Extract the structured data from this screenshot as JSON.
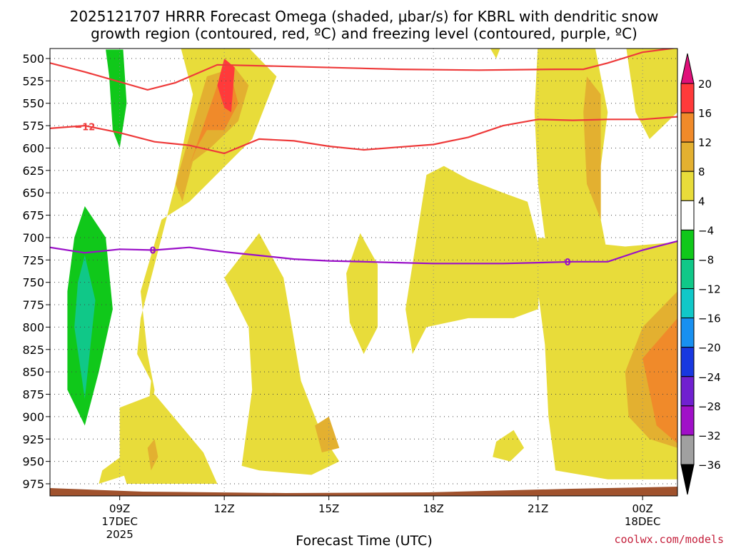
{
  "chart_data": {
    "type": "heatmap",
    "title_line1": "2025121707 HRRR Forecast Omega (shaded, μbar/s) for KBRL with dendritic snow",
    "title_line2": "growth region (contoured, red, ºC) and freezing level (contoured, purple, ºC)",
    "xlabel": "Forecast Time (UTC)",
    "credit": "coolwx.com/models",
    "x_range_hours": [
      7,
      25
    ],
    "y_range_mb": [
      500,
      990
    ],
    "y_ticks": [
      500,
      525,
      550,
      575,
      600,
      625,
      650,
      675,
      700,
      725,
      750,
      775,
      800,
      825,
      850,
      875,
      900,
      925,
      950,
      975
    ],
    "x_ticks": [
      {
        "hour": 9,
        "label": "09Z",
        "sub1": "17DEC",
        "sub2": "2025"
      },
      {
        "hour": 12,
        "label": "12Z",
        "sub1": "",
        "sub2": ""
      },
      {
        "hour": 15,
        "label": "15Z",
        "sub1": "",
        "sub2": ""
      },
      {
        "hour": 18,
        "label": "18Z",
        "sub1": "",
        "sub2": ""
      },
      {
        "hour": 21,
        "label": "21Z",
        "sub1": "",
        "sub2": ""
      },
      {
        "hour": 24,
        "label": "00Z",
        "sub1": "18DEC",
        "sub2": ""
      }
    ],
    "colorbar": {
      "labels": [
        "20",
        "16",
        "12",
        "8",
        "4",
        "−4",
        "−8",
        "−12",
        "−16",
        "−20",
        "−24",
        "−28",
        "−32",
        "−36"
      ],
      "bins": [
        {
          "color": "#ff3a3a"
        },
        {
          "color": "#f08a2a"
        },
        {
          "color": "#e3b030"
        },
        {
          "color": "#e8dc3a"
        },
        {
          "color": "#ffffff"
        },
        {
          "color": "#10c81a"
        },
        {
          "color": "#10c888"
        },
        {
          "color": "#10c8c8"
        },
        {
          "color": "#1890f0"
        },
        {
          "color": "#1838e0"
        },
        {
          "color": "#7020d0"
        },
        {
          "color": "#a010c8"
        },
        {
          "color": "#a0a0a0"
        }
      ],
      "top_color": "#e0107a",
      "bottom_color": "#000000"
    },
    "contours": [
      {
        "name": "dgz-top",
        "label": "",
        "color": "#ee3a3a",
        "points": [
          [
            7,
            505
          ],
          [
            8,
            515
          ],
          [
            9.8,
            535
          ],
          [
            10.6,
            527
          ],
          [
            11.8,
            507
          ],
          [
            14,
            509
          ],
          [
            17,
            512
          ],
          [
            19.3,
            513
          ],
          [
            21.5,
            512
          ],
          [
            22.3,
            512
          ],
          [
            23,
            505
          ],
          [
            24,
            493
          ],
          [
            25,
            488
          ]
        ]
      },
      {
        "name": "dgz-bottom",
        "label": "−12",
        "color": "#ee3a3a",
        "points": [
          [
            7,
            578
          ],
          [
            8,
            575
          ],
          [
            9,
            583
          ],
          [
            10,
            593
          ],
          [
            11,
            597
          ],
          [
            12,
            606
          ],
          [
            13,
            590
          ],
          [
            14,
            592
          ],
          [
            15,
            598
          ],
          [
            16,
            602
          ],
          [
            17,
            599
          ],
          [
            18,
            596
          ],
          [
            19,
            588
          ],
          [
            20,
            575
          ],
          [
            21,
            568
          ],
          [
            22,
            569
          ],
          [
            23,
            568
          ],
          [
            24,
            568
          ],
          [
            25,
            565
          ]
        ]
      },
      {
        "name": "freezing-level",
        "label": "0",
        "color": "#9a10c8",
        "points": [
          [
            7,
            711
          ],
          [
            8,
            717
          ],
          [
            9,
            713
          ],
          [
            10,
            714
          ],
          [
            11,
            711
          ],
          [
            12,
            716
          ],
          [
            13,
            720
          ],
          [
            14,
            724
          ],
          [
            15,
            726
          ],
          [
            16,
            727
          ],
          [
            17,
            728
          ],
          [
            18,
            729
          ],
          [
            19,
            729
          ],
          [
            20,
            729
          ],
          [
            21,
            728
          ],
          [
            22,
            727
          ],
          [
            23,
            727
          ],
          [
            24,
            714
          ],
          [
            25,
            704
          ]
        ]
      }
    ],
    "contour_labels": [
      {
        "text": "−12",
        "x": 8.0,
        "y": 576,
        "color": "#ee3a3a"
      },
      {
        "text": "0",
        "x": 9.95,
        "y": 714,
        "color": "#9a10c8"
      },
      {
        "text": "0",
        "x": 21.85,
        "y": 727,
        "color": "#9a10c8"
      }
    ],
    "regions": [
      {
        "level": "4-8",
        "color": "#e8dc3a",
        "points": [
          [
            10.7,
            480
          ],
          [
            12.5,
            480
          ],
          [
            13.5,
            520
          ],
          [
            12.8,
            590
          ],
          [
            11.9,
            625
          ],
          [
            11.0,
            660
          ],
          [
            10.2,
            680
          ],
          [
            9.6,
            760
          ],
          [
            9.8,
            830
          ],
          [
            10.0,
            870
          ],
          [
            9.8,
            920
          ],
          [
            9.6,
            960
          ],
          [
            8.4,
            975
          ],
          [
            8.5,
            960
          ],
          [
            9.2,
            940
          ],
          [
            9.8,
            900
          ],
          [
            9.9,
            860
          ],
          [
            9.5,
            830
          ],
          [
            9.6,
            790
          ],
          [
            10.2,
            700
          ],
          [
            10.6,
            640
          ],
          [
            10.9,
            580
          ],
          [
            11.1,
            540
          ]
        ]
      },
      {
        "level": "4-8",
        "color": "#e8dc3a",
        "points": [
          [
            9.0,
            890
          ],
          [
            10.0,
            875
          ],
          [
            11.4,
            940
          ],
          [
            11.8,
            975
          ],
          [
            10.4,
            975
          ],
          [
            9.2,
            975
          ],
          [
            9.0,
            950
          ]
        ]
      },
      {
        "level": "4-8",
        "color": "#e8dc3a",
        "points": [
          [
            12.0,
            745
          ],
          [
            13.0,
            695
          ],
          [
            13.7,
            745
          ],
          [
            14.2,
            860
          ],
          [
            14.8,
            920
          ],
          [
            15.3,
            950
          ],
          [
            14.5,
            965
          ],
          [
            13.0,
            960
          ],
          [
            12.5,
            955
          ],
          [
            12.8,
            870
          ],
          [
            12.7,
            800
          ]
        ]
      },
      {
        "level": "4-8",
        "color": "#e8dc3a",
        "points": [
          [
            15.5,
            740
          ],
          [
            15.9,
            695
          ],
          [
            16.4,
            730
          ],
          [
            16.4,
            800
          ],
          [
            16.0,
            830
          ],
          [
            15.6,
            795
          ]
        ]
      },
      {
        "level": "4-8",
        "color": "#e8dc3a",
        "points": [
          [
            17.2,
            780
          ],
          [
            17.8,
            630
          ],
          [
            18.3,
            620
          ],
          [
            19.0,
            635
          ],
          [
            20.0,
            650
          ],
          [
            20.7,
            660
          ],
          [
            21.1,
            720
          ],
          [
            21.0,
            780
          ],
          [
            20.3,
            790
          ],
          [
            19.0,
            790
          ],
          [
            17.8,
            800
          ],
          [
            17.4,
            830
          ]
        ]
      },
      {
        "level": "4-8",
        "color": "#e8dc3a",
        "points": [
          [
            21.0,
            480
          ],
          [
            22.6,
            480
          ],
          [
            23.0,
            560
          ],
          [
            22.8,
            620
          ],
          [
            22.8,
            680
          ],
          [
            23.0,
            720
          ],
          [
            21.7,
            730
          ],
          [
            21.2,
            700
          ],
          [
            21.0,
            640
          ],
          [
            20.9,
            560
          ]
        ]
      },
      {
        "level": "4-8",
        "color": "#e8dc3a",
        "points": [
          [
            21.0,
            700
          ],
          [
            23.5,
            710
          ],
          [
            25,
            705
          ],
          [
            25,
            970
          ],
          [
            23.0,
            970
          ],
          [
            21.5,
            960
          ],
          [
            21.3,
            900
          ],
          [
            21.2,
            820
          ],
          [
            21.0,
            760
          ]
        ]
      },
      {
        "level": "4-8",
        "color": "#e8dc3a",
        "points": [
          [
            23.5,
            480
          ],
          [
            25,
            480
          ],
          [
            25,
            560
          ],
          [
            24.2,
            590
          ],
          [
            23.8,
            560
          ]
        ]
      },
      {
        "level": "4-8",
        "color": "#e8dc3a",
        "points": [
          [
            19.8,
            928
          ],
          [
            20.3,
            915
          ],
          [
            20.6,
            935
          ],
          [
            20.2,
            950
          ],
          [
            19.7,
            945
          ]
        ]
      },
      {
        "level": "4-8",
        "color": "#e8dc3a",
        "points": [
          [
            19.5,
            480
          ],
          [
            20.0,
            480
          ],
          [
            19.8,
            500
          ]
        ]
      },
      {
        "level": "8-12",
        "color": "#e3b030",
        "points": [
          [
            11.5,
            520
          ],
          [
            12.3,
            510
          ],
          [
            12.7,
            530
          ],
          [
            12.4,
            570
          ],
          [
            11.6,
            600
          ],
          [
            11.1,
            615
          ],
          [
            10.8,
            660
          ],
          [
            10.6,
            640
          ]
        ]
      },
      {
        "level": "8-12",
        "color": "#e3b030",
        "points": [
          [
            9.8,
            935
          ],
          [
            10.0,
            925
          ],
          [
            10.1,
            945
          ],
          [
            9.9,
            960
          ]
        ]
      },
      {
        "level": "8-12",
        "color": "#e3b030",
        "points": [
          [
            14.6,
            910
          ],
          [
            15.0,
            900
          ],
          [
            15.3,
            935
          ],
          [
            14.8,
            940
          ]
        ]
      },
      {
        "level": "8-12",
        "color": "#e3b030",
        "points": [
          [
            22.4,
            520
          ],
          [
            22.8,
            540
          ],
          [
            22.8,
            680
          ],
          [
            22.4,
            640
          ],
          [
            22.3,
            560
          ]
        ]
      },
      {
        "level": "8-12",
        "color": "#e3b030",
        "points": [
          [
            23.5,
            850
          ],
          [
            24.0,
            800
          ],
          [
            25,
            760
          ],
          [
            25,
            935
          ],
          [
            24.2,
            925
          ],
          [
            23.6,
            900
          ]
        ]
      },
      {
        "level": "12-16",
        "color": "#f08a2a",
        "points": [
          [
            11.8,
            530
          ],
          [
            12.2,
            520
          ],
          [
            12.4,
            550
          ],
          [
            12.0,
            580
          ],
          [
            11.5,
            580
          ],
          [
            11.2,
            600
          ],
          [
            11.0,
            620
          ]
        ]
      },
      {
        "level": "12-16",
        "color": "#f08a2a",
        "points": [
          [
            24.0,
            835
          ],
          [
            25,
            790
          ],
          [
            25,
            930
          ],
          [
            24.4,
            910
          ]
        ]
      },
      {
        "level": "16-20",
        "color": "#ff3a3a",
        "points": [
          [
            12.0,
            500
          ],
          [
            12.3,
            510
          ],
          [
            12.2,
            560
          ],
          [
            12.0,
            555
          ],
          [
            11.8,
            530
          ]
        ]
      },
      {
        "level": "-8--4",
        "color": "#10c81a",
        "points": [
          [
            8.6,
            490
          ],
          [
            9.1,
            490
          ],
          [
            9.2,
            550
          ],
          [
            9.0,
            600
          ],
          [
            8.8,
            580
          ],
          [
            8.7,
            520
          ]
        ]
      },
      {
        "level": "-8--4",
        "color": "#10c81a",
        "points": [
          [
            8.0,
            665
          ],
          [
            8.6,
            700
          ],
          [
            8.8,
            780
          ],
          [
            8.4,
            850
          ],
          [
            8.0,
            910
          ],
          [
            7.5,
            870
          ],
          [
            7.5,
            760
          ],
          [
            7.7,
            700
          ]
        ]
      },
      {
        "level": "-12--8",
        "color": "#10c888",
        "points": [
          [
            8.0,
            720
          ],
          [
            8.3,
            770
          ],
          [
            8.0,
            880
          ],
          [
            7.7,
            800
          ],
          [
            7.8,
            750
          ]
        ]
      }
    ]
  }
}
